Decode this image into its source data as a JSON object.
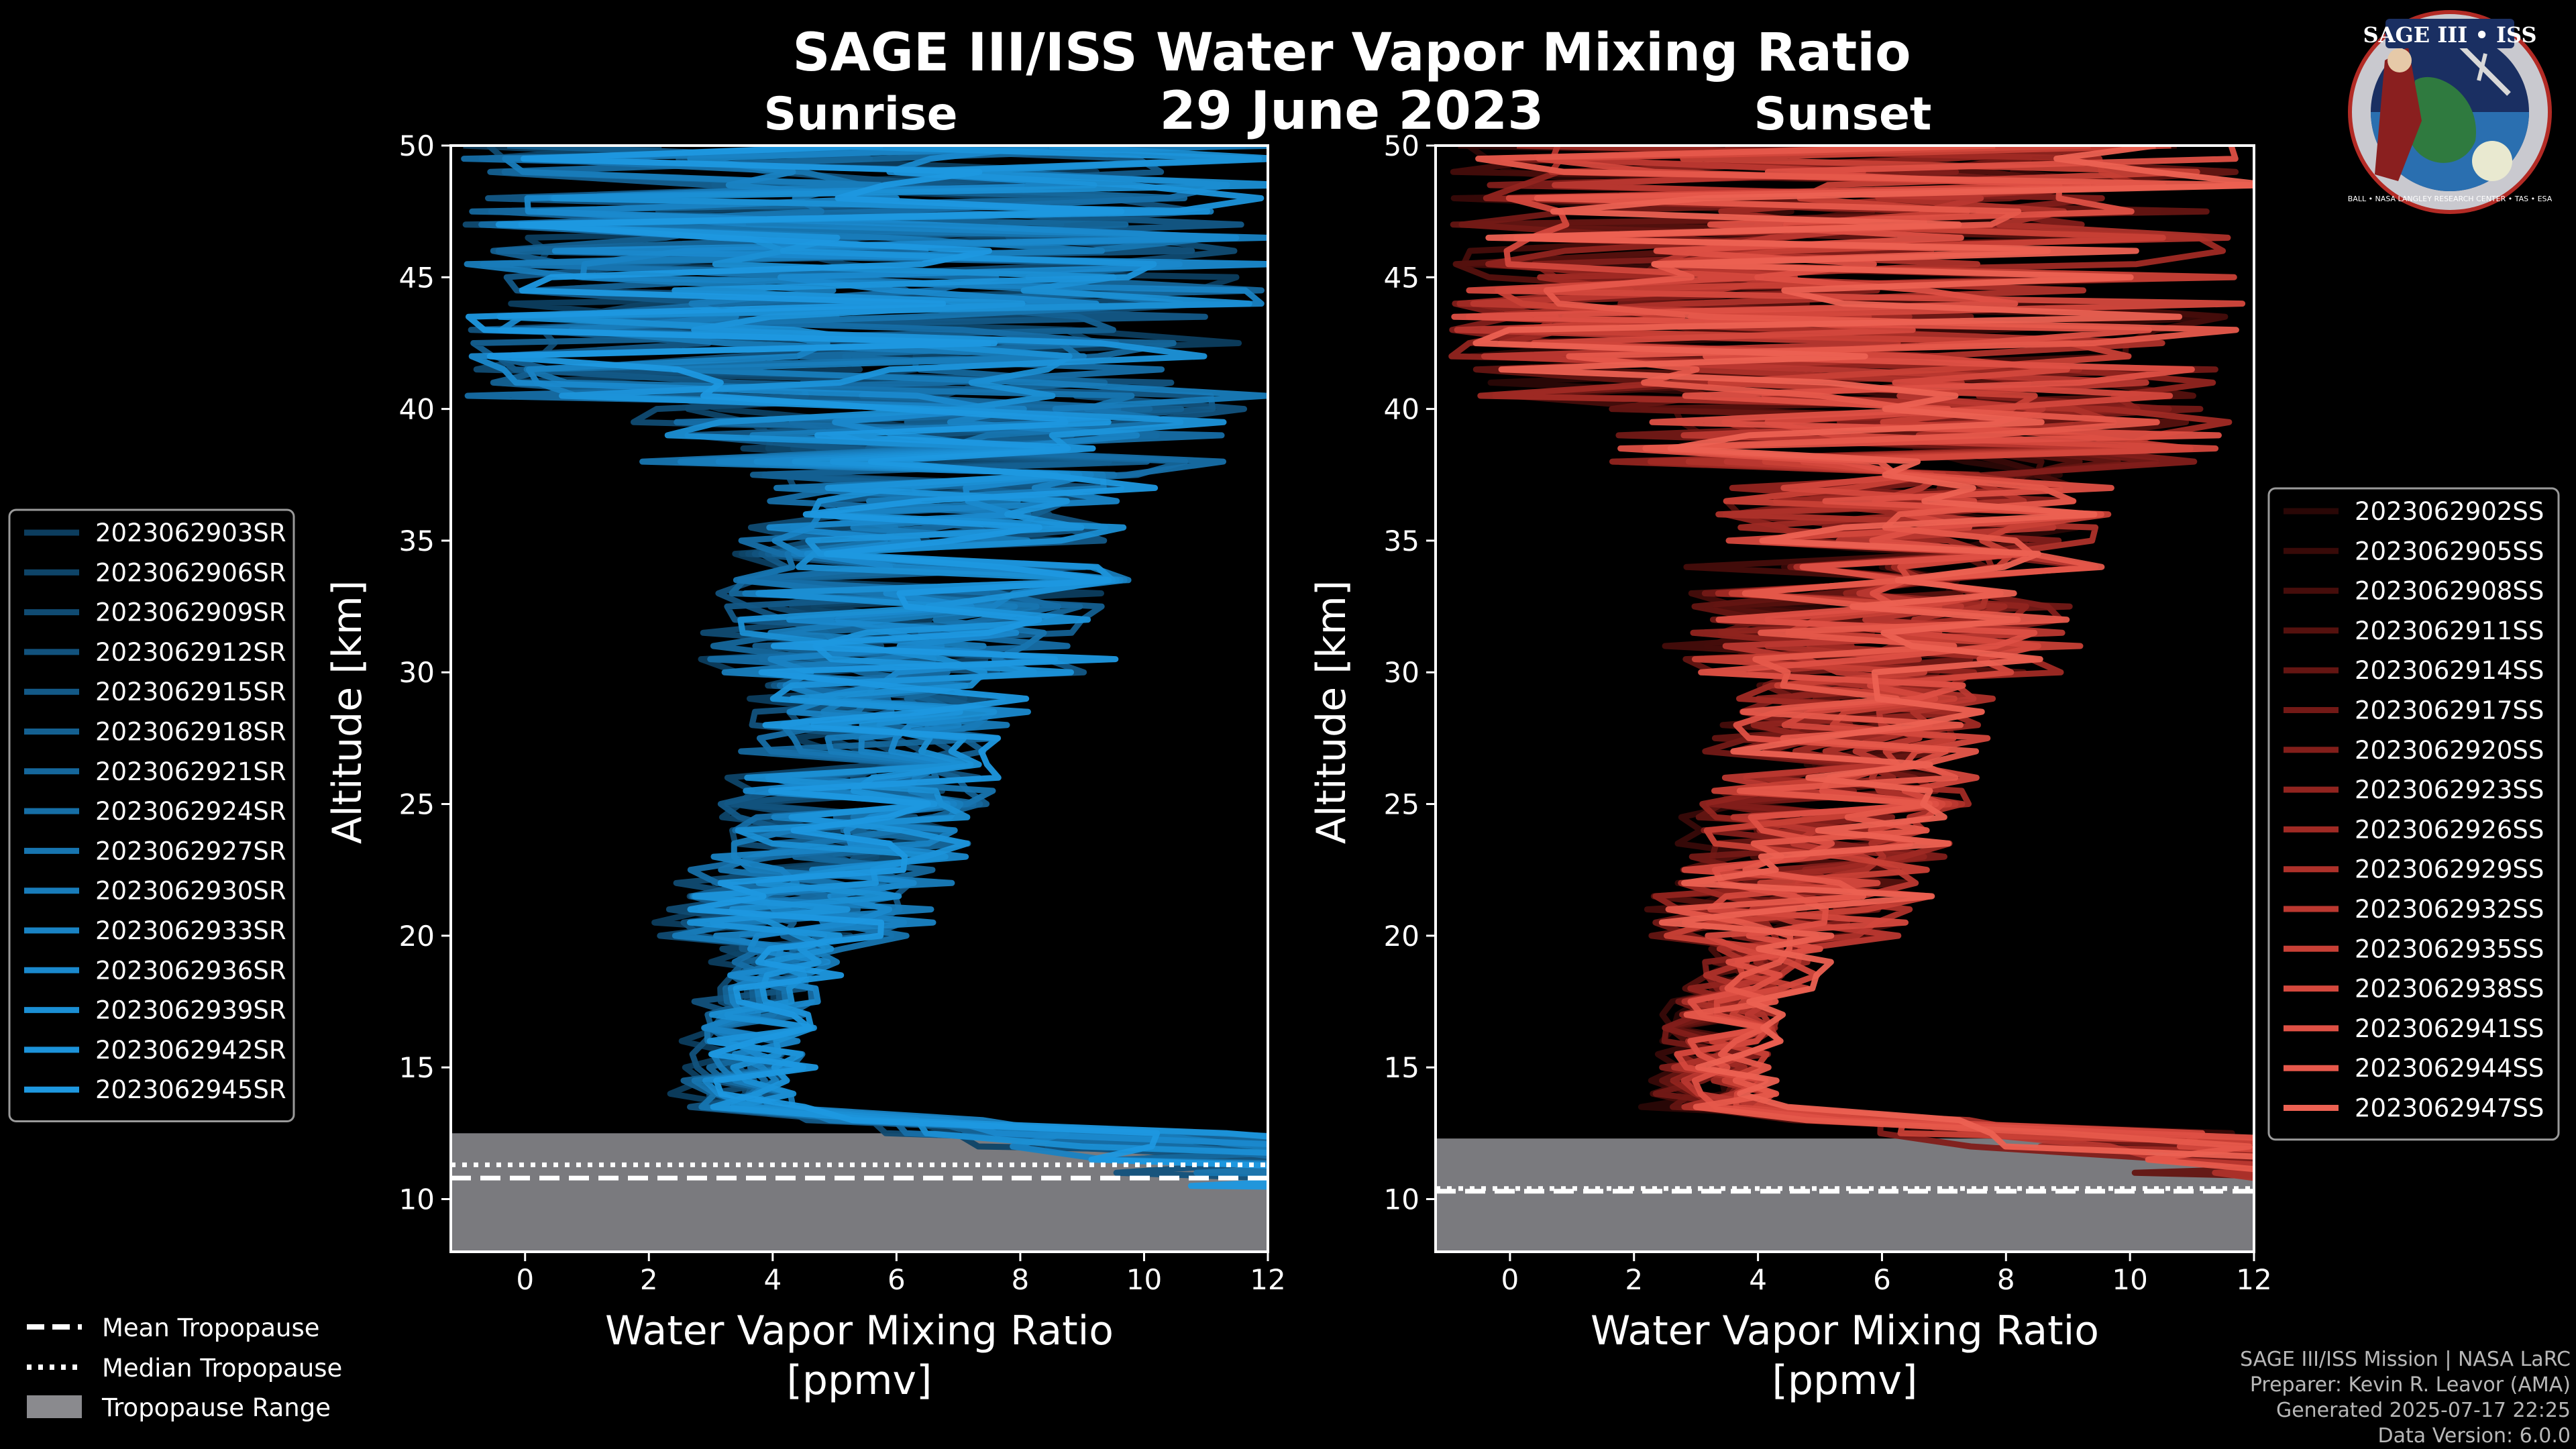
{
  "title": "SAGE III/ISS Water Vapor Mixing Ratio",
  "date": "29 June 2023",
  "logo": {
    "text": "SAGE III • ISS",
    "ring_text": "BALL • NASA LANGLEY RESEARCH CENTER • TAS • ESA"
  },
  "credits": {
    "line1": "SAGE III/ISS Mission | NASA LaRC",
    "line2": "Preparer: Kevin R. Leavor (AMA)",
    "line3": "Generated 2025-07-17 22:25",
    "line4": "Data Version: 6.0.0"
  },
  "bottom_legend": {
    "mean": "Mean Tropopause",
    "median": "Median Tropopause",
    "range": "Tropopause Range"
  },
  "chart_data": [
    {
      "type": "line",
      "title": "Sunrise",
      "xlabel_line1": "Water Vapor Mixing Ratio",
      "xlabel_line2": "[ppmv]",
      "ylabel": "Altitude [km]",
      "xlim": [
        -1.2,
        12
      ],
      "ylim": [
        8,
        50
      ],
      "xticks": [
        0,
        2,
        4,
        6,
        8,
        10,
        12
      ],
      "yticks": [
        10,
        15,
        20,
        25,
        30,
        35,
        40,
        45,
        50
      ],
      "color_base": "#1f8fd6",
      "tropopause": {
        "mean_km": 10.8,
        "median_km": 11.3,
        "range_km": [
          8.0,
          12.5
        ]
      },
      "series": [
        {
          "name": "2023062903SR",
          "color": "#0c3d5e"
        },
        {
          "name": "2023062906SR",
          "color": "#0e4468"
        },
        {
          "name": "2023062909SR",
          "color": "#104b72"
        },
        {
          "name": "2023062912SR",
          "color": "#12527d"
        },
        {
          "name": "2023062915SR",
          "color": "#135987"
        },
        {
          "name": "2023062918SR",
          "color": "#146091"
        },
        {
          "name": "2023062921SR",
          "color": "#15679c"
        },
        {
          "name": "2023062924SR",
          "color": "#166ea6"
        },
        {
          "name": "2023062927SR",
          "color": "#1775b0"
        },
        {
          "name": "2023062930SR",
          "color": "#187cba"
        },
        {
          "name": "2023062933SR",
          "color": "#1983c4"
        },
        {
          "name": "2023062936SR",
          "color": "#1a89cd"
        },
        {
          "name": "2023062939SR",
          "color": "#1b8fd4"
        },
        {
          "name": "2023062942SR",
          "color": "#1c93da"
        },
        {
          "name": "2023062945SR",
          "color": "#1e98e0"
        }
      ]
    },
    {
      "type": "line",
      "title": "Sunset",
      "xlabel_line1": "Water Vapor Mixing Ratio",
      "xlabel_line2": "[ppmv]",
      "ylabel": "Altitude [km]",
      "xlim": [
        -1.2,
        12
      ],
      "ylim": [
        8,
        50
      ],
      "xticks": [
        0,
        2,
        4,
        6,
        8,
        10,
        12
      ],
      "yticks": [
        10,
        15,
        20,
        25,
        30,
        35,
        40,
        45,
        50
      ],
      "color_base": "#e8584a",
      "tropopause": {
        "mean_km": 10.3,
        "median_km": 10.4,
        "range_km": [
          8.0,
          12.3
        ]
      },
      "series": [
        {
          "name": "2023062902SS",
          "color": "#2a0706"
        },
        {
          "name": "2023062905SS",
          "color": "#380a08"
        },
        {
          "name": "2023062908SS",
          "color": "#460d0b"
        },
        {
          "name": "2023062911SS",
          "color": "#55110e"
        },
        {
          "name": "2023062914SS",
          "color": "#641512"
        },
        {
          "name": "2023062917SS",
          "color": "#731916"
        },
        {
          "name": "2023062920SS",
          "color": "#821e1a"
        },
        {
          "name": "2023062923SS",
          "color": "#91241f"
        },
        {
          "name": "2023062926SS",
          "color": "#a02a24"
        },
        {
          "name": "2023062929SS",
          "color": "#ae312a"
        },
        {
          "name": "2023062932SS",
          "color": "#bb3830"
        },
        {
          "name": "2023062935SS",
          "color": "#c84036"
        },
        {
          "name": "2023062938SS",
          "color": "#d4483d"
        },
        {
          "name": "2023062941SS",
          "color": "#de5044"
        },
        {
          "name": "2023062944SS",
          "color": "#e6584b"
        },
        {
          "name": "2023062947SS",
          "color": "#ec6152"
        }
      ]
    }
  ]
}
